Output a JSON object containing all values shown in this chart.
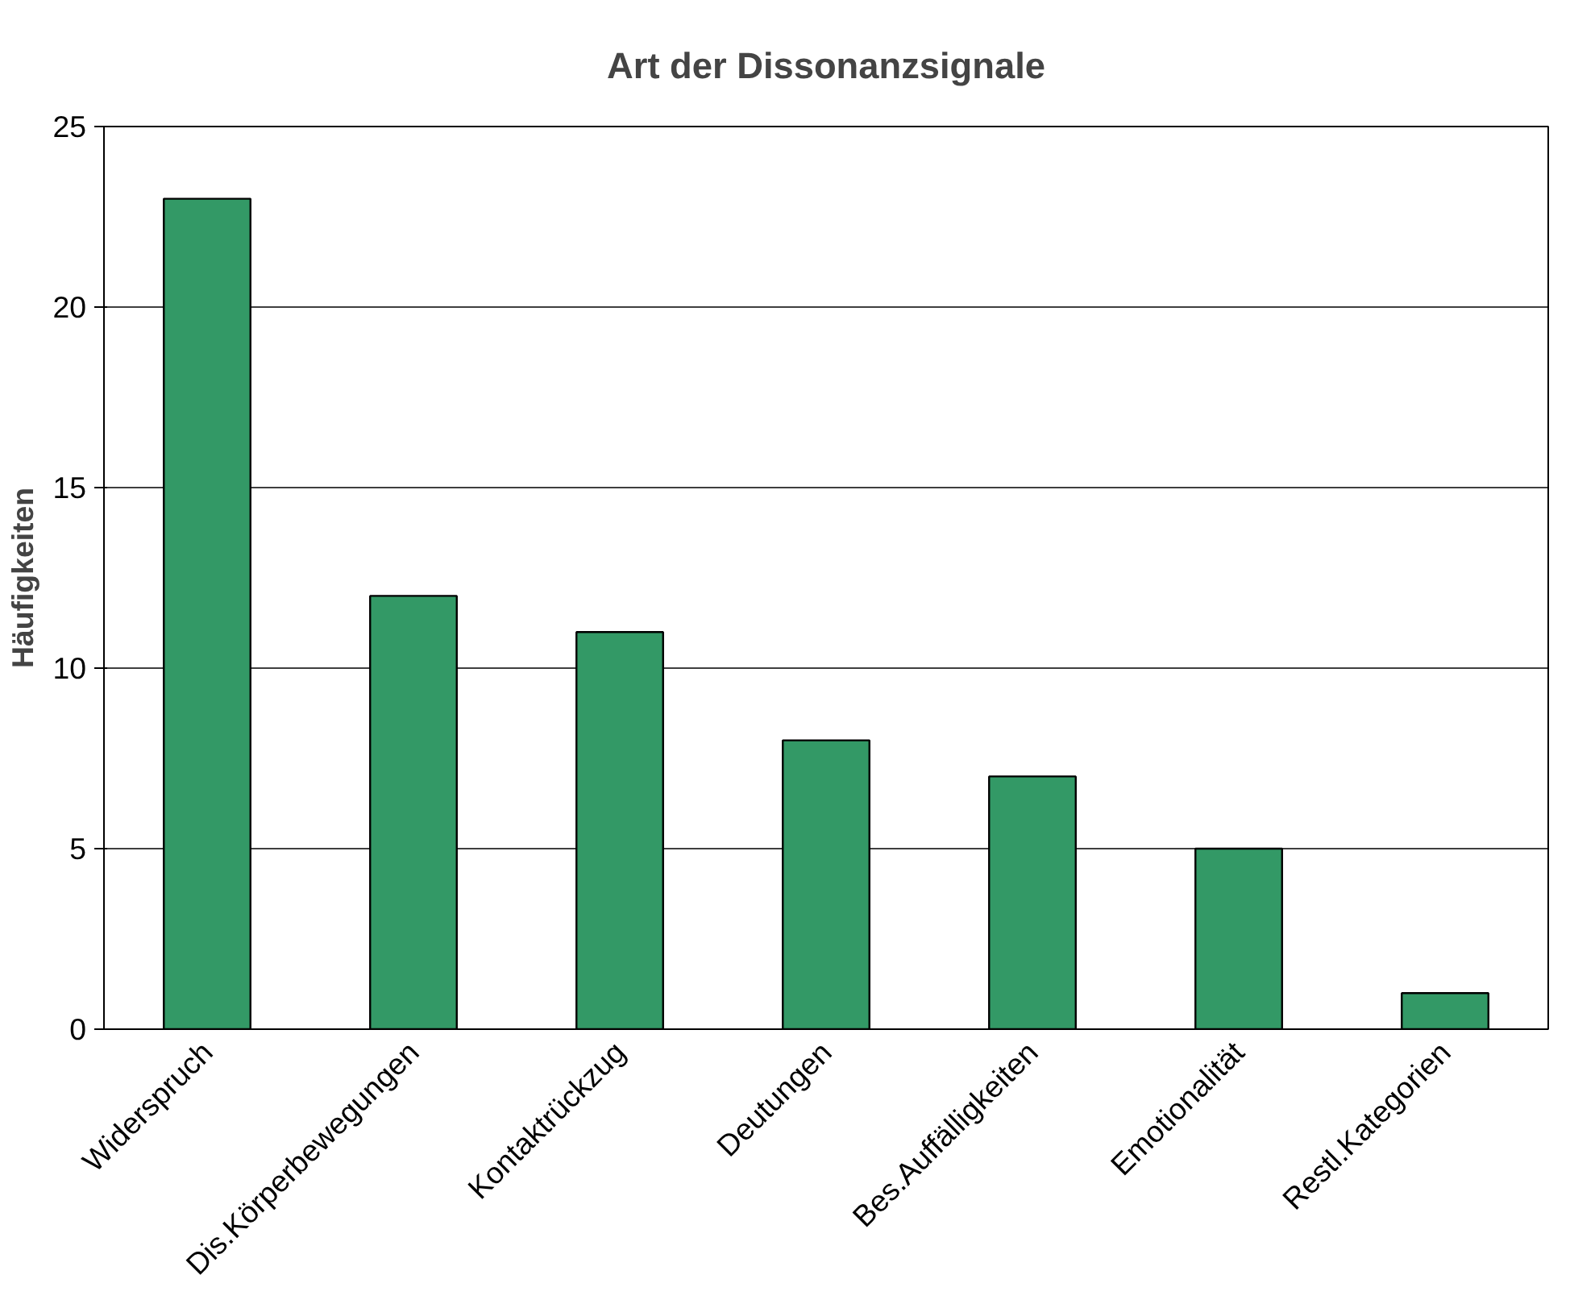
{
  "chart_data": {
    "type": "bar",
    "title": "Art der Dissonanzsignale",
    "ylabel": "Häufigkeiten",
    "categories": [
      "Widerspruch",
      "Dis.Körperbewegungen",
      "Kontaktrückzug",
      "Deutungen",
      "Bes.Auffälligkeiten",
      "Emotionalität",
      "Restl.Kategorien"
    ],
    "values": [
      23,
      12,
      11,
      8,
      7,
      5,
      1
    ],
    "color": "#339966",
    "ylim": [
      0,
      25
    ],
    "yticks": [
      0,
      5,
      10,
      15,
      20,
      25
    ],
    "grid": "y"
  }
}
